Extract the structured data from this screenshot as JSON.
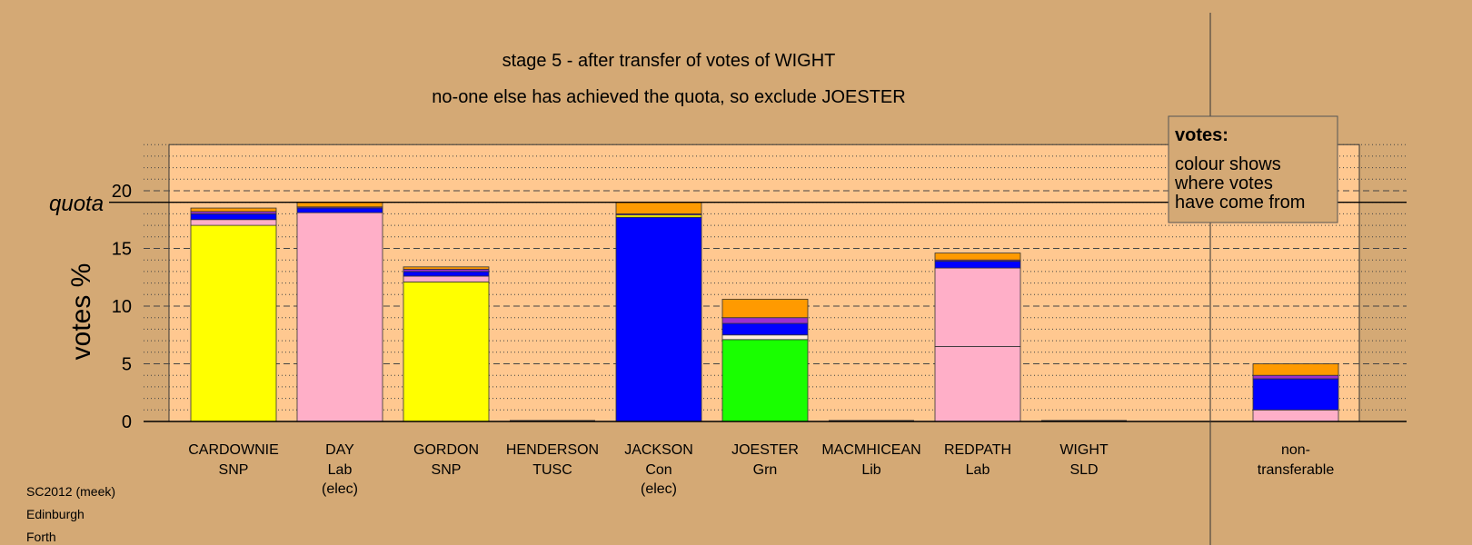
{
  "chart_data": {
    "type": "bar",
    "title": "stage 5 - after transfer of votes of WIGHT",
    "subtitle": "no-one else has achieved the quota, so exclude JOESTER",
    "ylabel": "votes %",
    "quota_label": "quota",
    "quota": 19.0,
    "ylim": [
      0,
      24
    ],
    "yticks": [
      0,
      5,
      10,
      15,
      20
    ],
    "grid": true,
    "legend": {
      "title": "votes:",
      "lines": [
        "colour shows",
        "where votes",
        "have come from"
      ],
      "placement": "top-right"
    },
    "colors": {
      "SNP": "#ffff00",
      "Lab": "#ffafc8",
      "Con": "#0000ff",
      "Grn": "#19ff00",
      "Lib": "#ff9a00",
      "SLD": "#9b30d0",
      "Other": "#ffeedd"
    },
    "candidates": [
      {
        "name": "CARDOWNIE",
        "party": "SNP",
        "status": "",
        "segments": [
          {
            "source": "SNP",
            "value": 17.0
          },
          {
            "source": "Lab",
            "value": 0.5
          },
          {
            "source": "Con",
            "value": 0.5
          },
          {
            "source": "SLD",
            "value": 0.2
          },
          {
            "source": "Lib",
            "value": 0.3
          }
        ]
      },
      {
        "name": "DAY",
        "party": "Lab",
        "status": "(elec)",
        "segments": [
          {
            "source": "Lab",
            "value": 18.1
          },
          {
            "source": "Con",
            "value": 0.4
          },
          {
            "source": "SLD",
            "value": 0.1
          },
          {
            "source": "Lib",
            "value": 0.4
          }
        ]
      },
      {
        "name": "GORDON",
        "party": "SNP",
        "status": "",
        "segments": [
          {
            "source": "SNP",
            "value": 12.1
          },
          {
            "source": "Lab",
            "value": 0.5
          },
          {
            "source": "Con",
            "value": 0.4
          },
          {
            "source": "SLD",
            "value": 0.2
          },
          {
            "source": "Lib",
            "value": 0.2
          }
        ]
      },
      {
        "name": "HENDERSON",
        "party": "TUSC",
        "status": "",
        "segments": []
      },
      {
        "name": "JACKSON",
        "party": "Con",
        "status": "(elec)",
        "segments": [
          {
            "source": "Con",
            "value": 17.7
          },
          {
            "source": "SNP",
            "value": 0.2
          },
          {
            "source": "SLD",
            "value": 0.1
          },
          {
            "source": "Lib",
            "value": 1.0
          }
        ]
      },
      {
        "name": "JOESTER",
        "party": "Grn",
        "status": "",
        "segments": [
          {
            "source": "Grn",
            "value": 7.1
          },
          {
            "source": "Other",
            "value": 0.4
          },
          {
            "source": "Con",
            "value": 1.0
          },
          {
            "source": "SLD",
            "value": 0.5
          },
          {
            "source": "Lib",
            "value": 1.6
          }
        ]
      },
      {
        "name": "MACMHICEAN",
        "party": "Lib",
        "status": "",
        "segments": []
      },
      {
        "name": "REDPATH",
        "party": "Lab",
        "status": "",
        "segments": [
          {
            "source": "Lab",
            "value": 6.5
          },
          {
            "source": "Lab",
            "value": 6.8
          },
          {
            "source": "Con",
            "value": 0.6
          },
          {
            "source": "SLD",
            "value": 0.1
          },
          {
            "source": "Lib",
            "value": 0.6
          }
        ]
      },
      {
        "name": "WIGHT",
        "party": "SLD",
        "status": "",
        "segments": []
      }
    ],
    "nontransferable": {
      "label_lines": [
        "non-",
        "transferable"
      ],
      "segments": [
        {
          "source": "Lab",
          "value": 1.0
        },
        {
          "source": "Con",
          "value": 2.7
        },
        {
          "source": "SLD",
          "value": 0.3
        },
        {
          "source": "Lib",
          "value": 1.0
        }
      ]
    }
  },
  "footer": {
    "lines": [
      "SC2012 (meek)",
      "Edinburgh",
      "Forth"
    ]
  }
}
